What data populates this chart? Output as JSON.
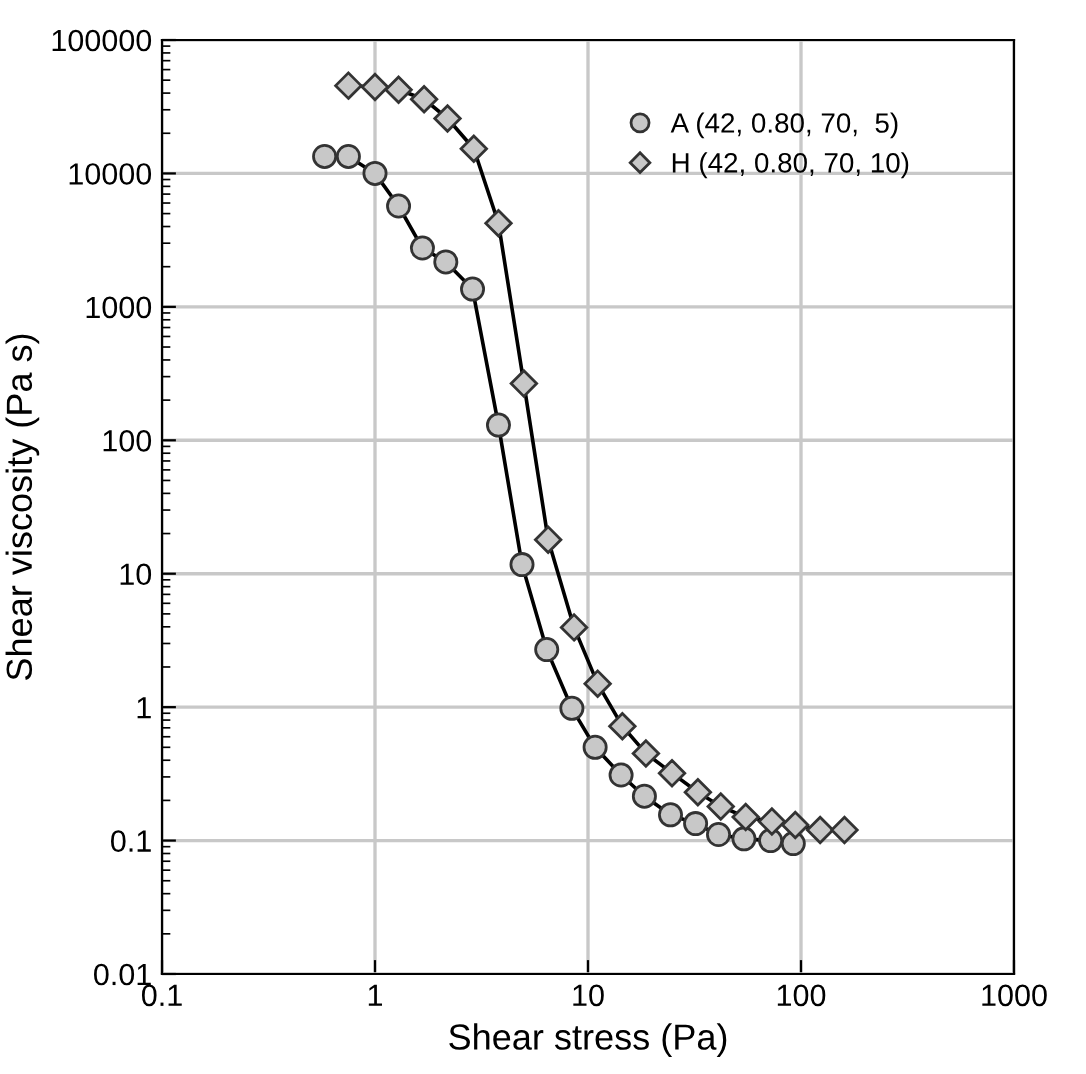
{
  "chart_data": {
    "type": "line",
    "xlabel": "Shear stress (Pa)",
    "ylabel": "Shear viscosity (Pa s)",
    "log": "xy",
    "xlim": [
      0.1,
      1000
    ],
    "xticks": [
      0.1,
      1,
      10,
      100,
      1000
    ],
    "ylim": [
      0.01,
      100000
    ],
    "yticks": [
      0.01,
      0.1,
      1,
      10,
      100,
      1000,
      10000,
      100000
    ],
    "grid": true,
    "legend": "top right",
    "series": [
      {
        "name": "A (42, 0.80, 70,  5)",
        "color": "#c8c8c8",
        "marker": "circle",
        "x": [
          0.58,
          0.75,
          1.0,
          1.29,
          1.67,
          2.15,
          2.87,
          3.8,
          4.9,
          6.4,
          8.4,
          10.8,
          14.3,
          18.4,
          24.4,
          32,
          41,
          54,
          72,
          92
        ],
        "values": [
          13400,
          13400,
          10000,
          5700,
          2760,
          2170,
          1360,
          130,
          11.7,
          2.7,
          0.98,
          0.5,
          0.31,
          0.215,
          0.156,
          0.134,
          0.111,
          0.103,
          0.1,
          0.095
        ]
      },
      {
        "name": "H (42, 0.80, 70, 10)",
        "color": "#c8c8c8",
        "marker": "diamond",
        "x": [
          0.75,
          1.0,
          1.29,
          1.7,
          2.19,
          2.91,
          3.8,
          5.0,
          6.5,
          8.6,
          11.1,
          14.5,
          18.7,
          24.8,
          32.8,
          42,
          55,
          73,
          94,
          123,
          160
        ],
        "values": [
          45500,
          44400,
          42400,
          36000,
          25800,
          15300,
          4230,
          266,
          18,
          3.96,
          1.5,
          0.72,
          0.45,
          0.32,
          0.23,
          0.18,
          0.15,
          0.139,
          0.131,
          0.12,
          0.12
        ]
      }
    ]
  }
}
